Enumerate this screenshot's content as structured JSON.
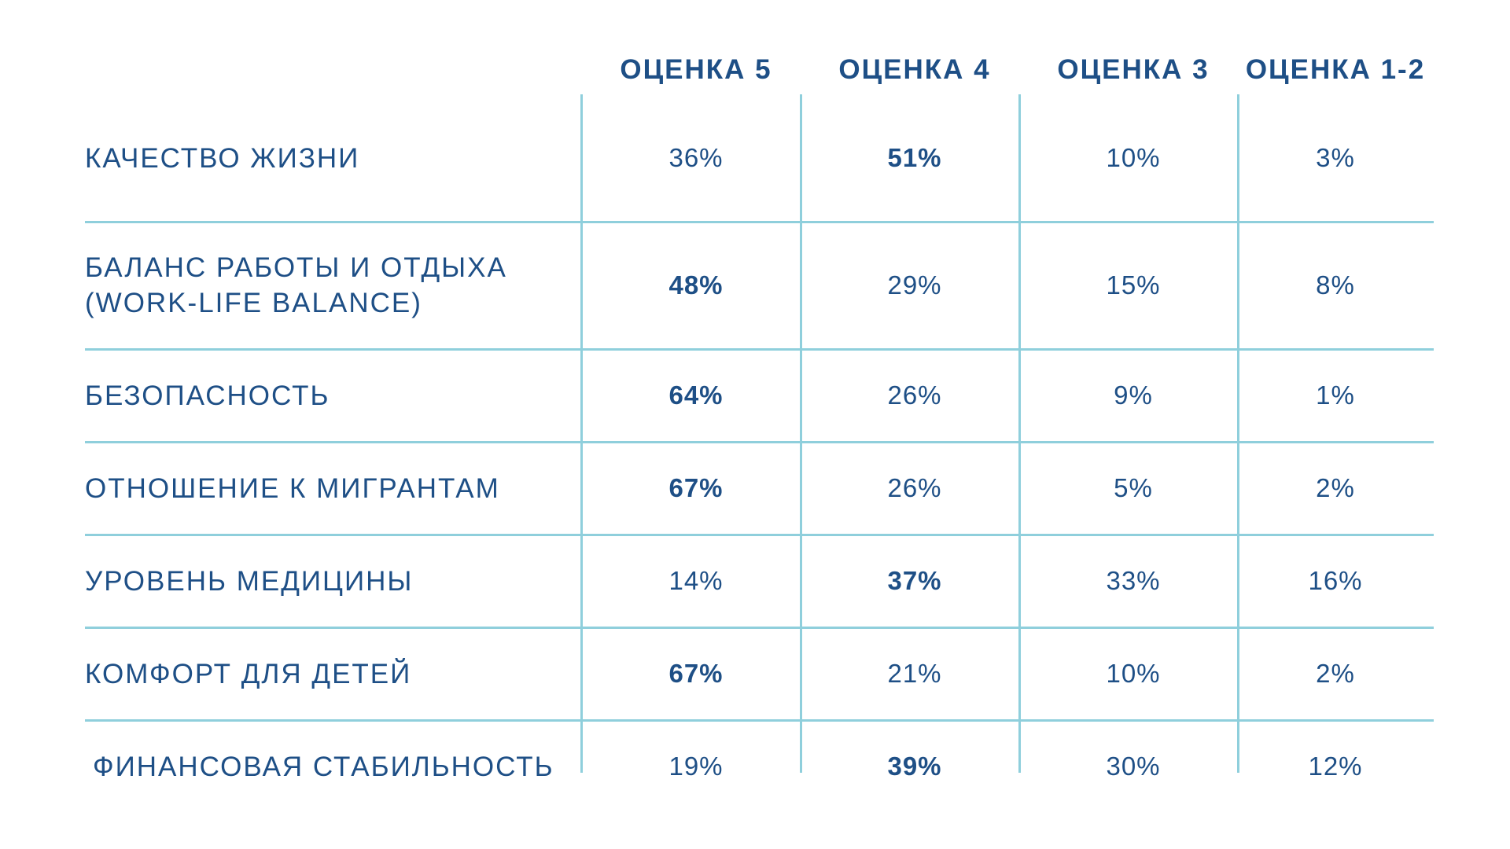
{
  "chart_data": {
    "type": "table",
    "columns": [
      "ОЦЕНКА 5",
      "ОЦЕНКА 4",
      "ОЦЕНКА 3",
      "ОЦЕНКА 1-2"
    ],
    "rows": [
      {
        "label": "КАЧЕСТВО ЖИЗНИ",
        "values": [
          "36%",
          "51%",
          "10%",
          "3%"
        ],
        "bold": [
          false,
          true,
          false,
          false
        ]
      },
      {
        "label": "БАЛАНС РАБОТЫ И ОТДЫХА\n(WORK-LIFE BALANCE)",
        "values": [
          "48%",
          "29%",
          "15%",
          "8%"
        ],
        "bold": [
          true,
          false,
          false,
          false
        ]
      },
      {
        "label": "БЕЗОПАСНОСТЬ",
        "values": [
          "64%",
          "26%",
          "9%",
          "1%"
        ],
        "bold": [
          true,
          false,
          false,
          false
        ]
      },
      {
        "label": "ОТНОШЕНИЕ К МИГРАНТАМ",
        "values": [
          "67%",
          "26%",
          "5%",
          "2%"
        ],
        "bold": [
          true,
          false,
          false,
          false
        ]
      },
      {
        "label": "УРОВЕНЬ МЕДИЦИНЫ",
        "values": [
          "14%",
          "37%",
          "33%",
          "16%"
        ],
        "bold": [
          false,
          true,
          false,
          false
        ]
      },
      {
        "label": "КОМФОРТ ДЛЯ ДЕТЕЙ",
        "values": [
          "67%",
          "21%",
          "10%",
          "2%"
        ],
        "bold": [
          true,
          false,
          false,
          false
        ]
      },
      {
        "label": "ФИНАНСОВАЯ СТАБИЛЬНОСТЬ",
        "values": [
          "19%",
          "39%",
          "30%",
          "12%"
        ],
        "bold": [
          false,
          true,
          false,
          false
        ]
      }
    ]
  },
  "colors": {
    "text": "#1e4f86",
    "grid": "#8fcfdc",
    "background": "#ffffff"
  }
}
